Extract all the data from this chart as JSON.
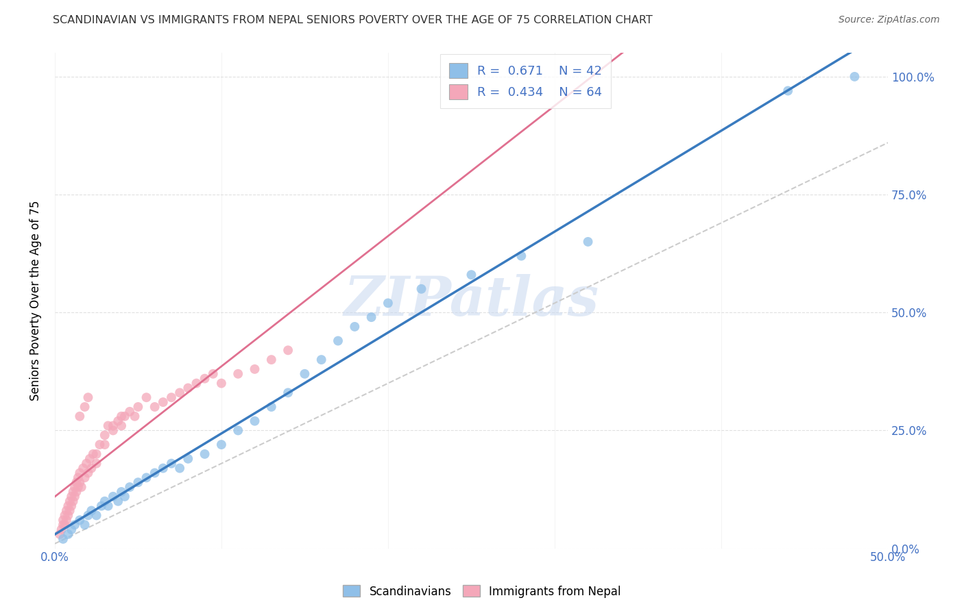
{
  "title": "SCANDINAVIAN VS IMMIGRANTS FROM NEPAL SENIORS POVERTY OVER THE AGE OF 75 CORRELATION CHART",
  "source": "Source: ZipAtlas.com",
  "ylabel": "Seniors Poverty Over the Age of 75",
  "xlim": [
    0.0,
    0.5
  ],
  "ylim": [
    0.0,
    1.05
  ],
  "scandinavian_R": 0.671,
  "scandinavian_N": 42,
  "nepal_R": 0.434,
  "nepal_N": 64,
  "scand_color": "#8fbfe8",
  "nepal_color": "#f4a7b9",
  "scand_line_color": "#3a7bbf",
  "nepal_line_color": "#e07090",
  "watermark": "ZIPatlas",
  "legend_label_scand": "Scandinavians",
  "legend_label_nepal": "Immigrants from Nepal",
  "scand_x": [
    0.005,
    0.008,
    0.01,
    0.012,
    0.015,
    0.018,
    0.02,
    0.022,
    0.025,
    0.028,
    0.03,
    0.032,
    0.035,
    0.038,
    0.04,
    0.042,
    0.045,
    0.05,
    0.055,
    0.06,
    0.065,
    0.07,
    0.075,
    0.08,
    0.09,
    0.1,
    0.11,
    0.12,
    0.13,
    0.14,
    0.15,
    0.16,
    0.17,
    0.18,
    0.19,
    0.2,
    0.22,
    0.25,
    0.28,
    0.32,
    0.44,
    0.48
  ],
  "scand_y": [
    0.02,
    0.03,
    0.04,
    0.05,
    0.06,
    0.05,
    0.07,
    0.08,
    0.07,
    0.09,
    0.1,
    0.09,
    0.11,
    0.1,
    0.12,
    0.11,
    0.13,
    0.14,
    0.15,
    0.16,
    0.17,
    0.18,
    0.17,
    0.19,
    0.2,
    0.22,
    0.25,
    0.27,
    0.3,
    0.33,
    0.37,
    0.4,
    0.44,
    0.47,
    0.49,
    0.52,
    0.55,
    0.58,
    0.62,
    0.65,
    0.97,
    1.0
  ],
  "nepal_x": [
    0.003,
    0.004,
    0.005,
    0.005,
    0.006,
    0.006,
    0.007,
    0.007,
    0.008,
    0.008,
    0.009,
    0.009,
    0.01,
    0.01,
    0.011,
    0.011,
    0.012,
    0.012,
    0.013,
    0.013,
    0.014,
    0.014,
    0.015,
    0.015,
    0.016,
    0.017,
    0.018,
    0.019,
    0.02,
    0.021,
    0.022,
    0.023,
    0.025,
    0.027,
    0.03,
    0.032,
    0.035,
    0.038,
    0.04,
    0.042,
    0.045,
    0.048,
    0.05,
    0.055,
    0.06,
    0.065,
    0.07,
    0.075,
    0.08,
    0.085,
    0.09,
    0.095,
    0.1,
    0.11,
    0.12,
    0.13,
    0.14,
    0.015,
    0.018,
    0.02,
    0.025,
    0.03,
    0.035,
    0.04
  ],
  "nepal_y": [
    0.03,
    0.04,
    0.05,
    0.06,
    0.05,
    0.07,
    0.06,
    0.08,
    0.07,
    0.09,
    0.08,
    0.1,
    0.09,
    0.11,
    0.1,
    0.12,
    0.11,
    0.13,
    0.12,
    0.14,
    0.13,
    0.15,
    0.14,
    0.16,
    0.13,
    0.17,
    0.15,
    0.18,
    0.16,
    0.19,
    0.17,
    0.2,
    0.18,
    0.22,
    0.24,
    0.26,
    0.25,
    0.27,
    0.26,
    0.28,
    0.29,
    0.28,
    0.3,
    0.32,
    0.3,
    0.31,
    0.32,
    0.33,
    0.34,
    0.35,
    0.36,
    0.37,
    0.35,
    0.37,
    0.38,
    0.4,
    0.42,
    0.28,
    0.3,
    0.32,
    0.2,
    0.22,
    0.26,
    0.28
  ]
}
